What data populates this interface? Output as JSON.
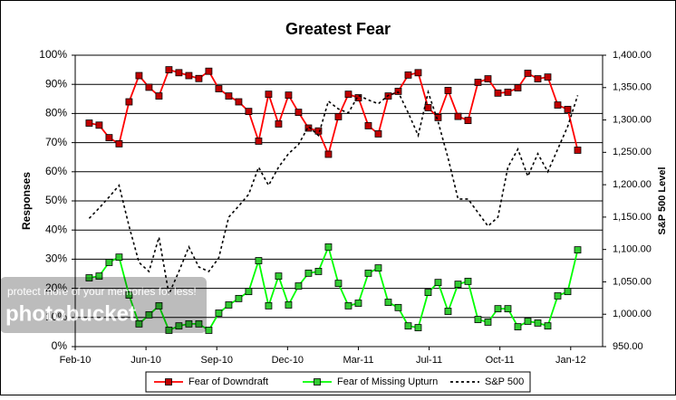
{
  "chart_data": {
    "type": "line",
    "title": "Greatest Fear",
    "y_label": "Responses",
    "y2_label": "S&P 500 Level",
    "x": [
      0,
      1,
      2,
      3,
      4,
      5,
      6,
      7,
      8,
      9,
      10,
      11,
      12,
      13,
      14,
      15,
      16,
      17,
      18,
      19,
      20,
      21,
      22,
      23,
      24,
      25,
      26,
      27,
      28,
      29,
      30,
      31,
      32,
      33,
      34,
      35,
      36,
      37,
      38,
      39,
      40,
      41,
      42,
      43,
      44,
      45,
      46,
      47,
      48,
      49
    ],
    "xlim": [
      -1.4,
      51.5
    ],
    "xticks": [
      {
        "value": -1.4,
        "label": "Feb-10"
      },
      {
        "value": 5.7,
        "label": "Jun-10"
      },
      {
        "value": 12.8,
        "label": "Sep-10"
      },
      {
        "value": 19.9,
        "label": "Dec-10"
      },
      {
        "value": 27,
        "label": "Mar-11"
      },
      {
        "value": 34.1,
        "label": "Jul-11"
      },
      {
        "value": 41.2,
        "label": "Oct-11"
      },
      {
        "value": 48.3,
        "label": "Jan-12"
      }
    ],
    "ylim": [
      0,
      100
    ],
    "yticks": [
      {
        "value": 0,
        "label": "0%"
      },
      {
        "value": 10,
        "label": "10%"
      },
      {
        "value": 20,
        "label": "20%"
      },
      {
        "value": 30,
        "label": "30%"
      },
      {
        "value": 40,
        "label": "40%"
      },
      {
        "value": 50,
        "label": "50%"
      },
      {
        "value": 60,
        "label": "60%"
      },
      {
        "value": 70,
        "label": "70%"
      },
      {
        "value": 80,
        "label": "80%"
      },
      {
        "value": 90,
        "label": "90%"
      },
      {
        "value": 100,
        "label": "100%"
      }
    ],
    "y2lim": [
      950,
      1400
    ],
    "y2ticks": [
      {
        "value": 950,
        "label": "950.00"
      },
      {
        "value": 1000,
        "label": "1,000.00"
      },
      {
        "value": 1050,
        "label": "1,050.00"
      },
      {
        "value": 1100,
        "label": "1,100.00"
      },
      {
        "value": 1150,
        "label": "1,150.00"
      },
      {
        "value": 1200,
        "label": "1,200.00"
      },
      {
        "value": 1250,
        "label": "1,250.00"
      },
      {
        "value": 1300,
        "label": "1,300.00"
      },
      {
        "value": 1350,
        "label": "1,350.00"
      },
      {
        "value": 1400,
        "label": "1,400.00"
      }
    ],
    "grid": true,
    "legend": "bottom",
    "series": [
      {
        "name": "Fear of Downdraft",
        "color": "#ff0000",
        "marker": "square",
        "marker_color": "#c00000",
        "values": [
          76.7,
          76,
          71.7,
          69.6,
          84,
          93,
          89,
          86,
          95,
          94,
          93,
          92,
          94.5,
          88.5,
          86,
          84,
          80.7,
          70.5,
          86.6,
          76.4,
          86.3,
          80.4,
          75,
          74,
          66,
          78.9,
          86.6,
          85.4,
          75.8,
          73,
          86,
          87.6,
          93.2,
          94,
          82,
          78.6,
          87.9,
          79,
          77.6,
          90.7,
          91.9,
          87,
          87.3,
          88.8,
          93.8,
          91.9,
          92.5,
          82.9,
          81.4,
          67.4
        ]
      },
      {
        "name": "Fear of Missing Upturn",
        "color": "#00ff00",
        "marker": "square",
        "marker_color": "#33cc33",
        "values": [
          23.6,
          24.2,
          28.9,
          30.7,
          17.7,
          7.8,
          10.9,
          14,
          5.6,
          7.1,
          7.8,
          7.8,
          5.6,
          11.5,
          14.3,
          16.5,
          18.9,
          29.5,
          14,
          24.2,
          14.3,
          20.8,
          25.2,
          25.8,
          34.2,
          21.7,
          14,
          14.9,
          25.2,
          27,
          15.2,
          13.4,
          7.1,
          6.5,
          18.6,
          22,
          12.1,
          21.4,
          22.4,
          9.3,
          8.4,
          13,
          13,
          6.8,
          8.7,
          8.1,
          7.1,
          17.4,
          18.9,
          33.2
        ]
      },
      {
        "name": "S&P 500",
        "color": "#000000",
        "dash": true,
        "axis": "y2",
        "values": [
          1148,
          1164,
          1181,
          1199,
          1136,
          1080,
          1066,
          1119,
          1031,
          1066,
          1104,
          1073,
          1066,
          1087,
          1150,
          1167,
          1185,
          1227,
          1199,
          1227,
          1248,
          1262,
          1290,
          1276,
          1329,
          1317,
          1311,
          1338,
          1331,
          1325,
          1338,
          1343,
          1311,
          1276,
          1343,
          1297,
          1241,
          1178,
          1178,
          1157,
          1136,
          1150,
          1227,
          1255,
          1213,
          1248,
          1220,
          1255,
          1290,
          1338
        ]
      }
    ],
    "watermark": {
      "text": "protect more of your memories for less!",
      "brand": "photobucket"
    }
  }
}
